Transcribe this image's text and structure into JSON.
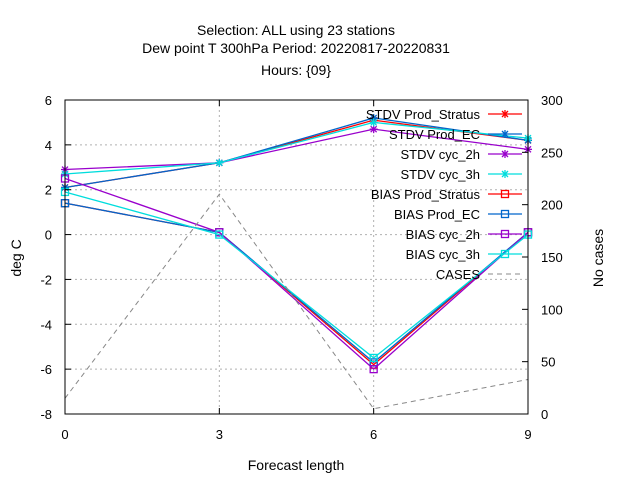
{
  "chart_data": {
    "type": "line",
    "title_lines": [
      "Selection: ALL using    23 stations",
      "Dew point T 300hPa   Period: 20220817-20220831",
      "Hours: {09}"
    ],
    "xlabel": "Forecast length",
    "ylabel": "deg C",
    "y2label": "No cases",
    "x": [
      0,
      3,
      6,
      9
    ],
    "xticks": [
      "0",
      "3",
      "6",
      "9"
    ],
    "xlim": [
      0,
      9
    ],
    "ylim": [
      -8,
      6
    ],
    "yticks": [
      "-8",
      "-6",
      "-4",
      "-2",
      "0",
      "2",
      "4",
      "6"
    ],
    "y2lim": [
      0,
      300
    ],
    "y2ticks": [
      "0",
      "50",
      "100",
      "150",
      "200",
      "250",
      "300"
    ],
    "grid": true,
    "legend_position": "top-right",
    "series": [
      {
        "name": "STDV Prod_Stratus",
        "kind": "stdv",
        "color": "#ff0000",
        "axis": "y1",
        "values": [
          2.1,
          3.2,
          5.1,
          4.2
        ]
      },
      {
        "name": "STDV Prod_EC",
        "kind": "stdv",
        "color": "#0066cc",
        "axis": "y1",
        "values": [
          2.1,
          3.2,
          5.2,
          4.2
        ]
      },
      {
        "name": "STDV cyc_2h",
        "kind": "stdv",
        "color": "#9900cc",
        "axis": "y1",
        "values": [
          2.9,
          3.2,
          4.7,
          3.8
        ]
      },
      {
        "name": "STDV cyc_3h",
        "kind": "stdv",
        "color": "#00dddd",
        "axis": "y1",
        "values": [
          2.7,
          3.2,
          5.0,
          4.3
        ]
      },
      {
        "name": "BIAS Prod_Stratus",
        "kind": "bias",
        "color": "#ff0000",
        "axis": "y1",
        "values": [
          1.4,
          0.1,
          -5.8,
          0.1
        ]
      },
      {
        "name": "BIAS Prod_EC",
        "kind": "bias",
        "color": "#0066cc",
        "axis": "y1",
        "values": [
          1.4,
          0.1,
          -5.7,
          0.1
        ]
      },
      {
        "name": "BIAS cyc_2h",
        "kind": "bias",
        "color": "#9900cc",
        "axis": "y1",
        "values": [
          2.5,
          0.1,
          -6.0,
          0.1
        ]
      },
      {
        "name": "BIAS cyc_3h",
        "kind": "bias",
        "color": "#00dddd",
        "axis": "y1",
        "values": [
          1.9,
          0.0,
          -5.5,
          0.0
        ]
      },
      {
        "name": "CASES",
        "kind": "cases",
        "color": "#888888",
        "axis": "y2",
        "values": [
          15,
          210,
          5,
          33
        ]
      }
    ]
  }
}
